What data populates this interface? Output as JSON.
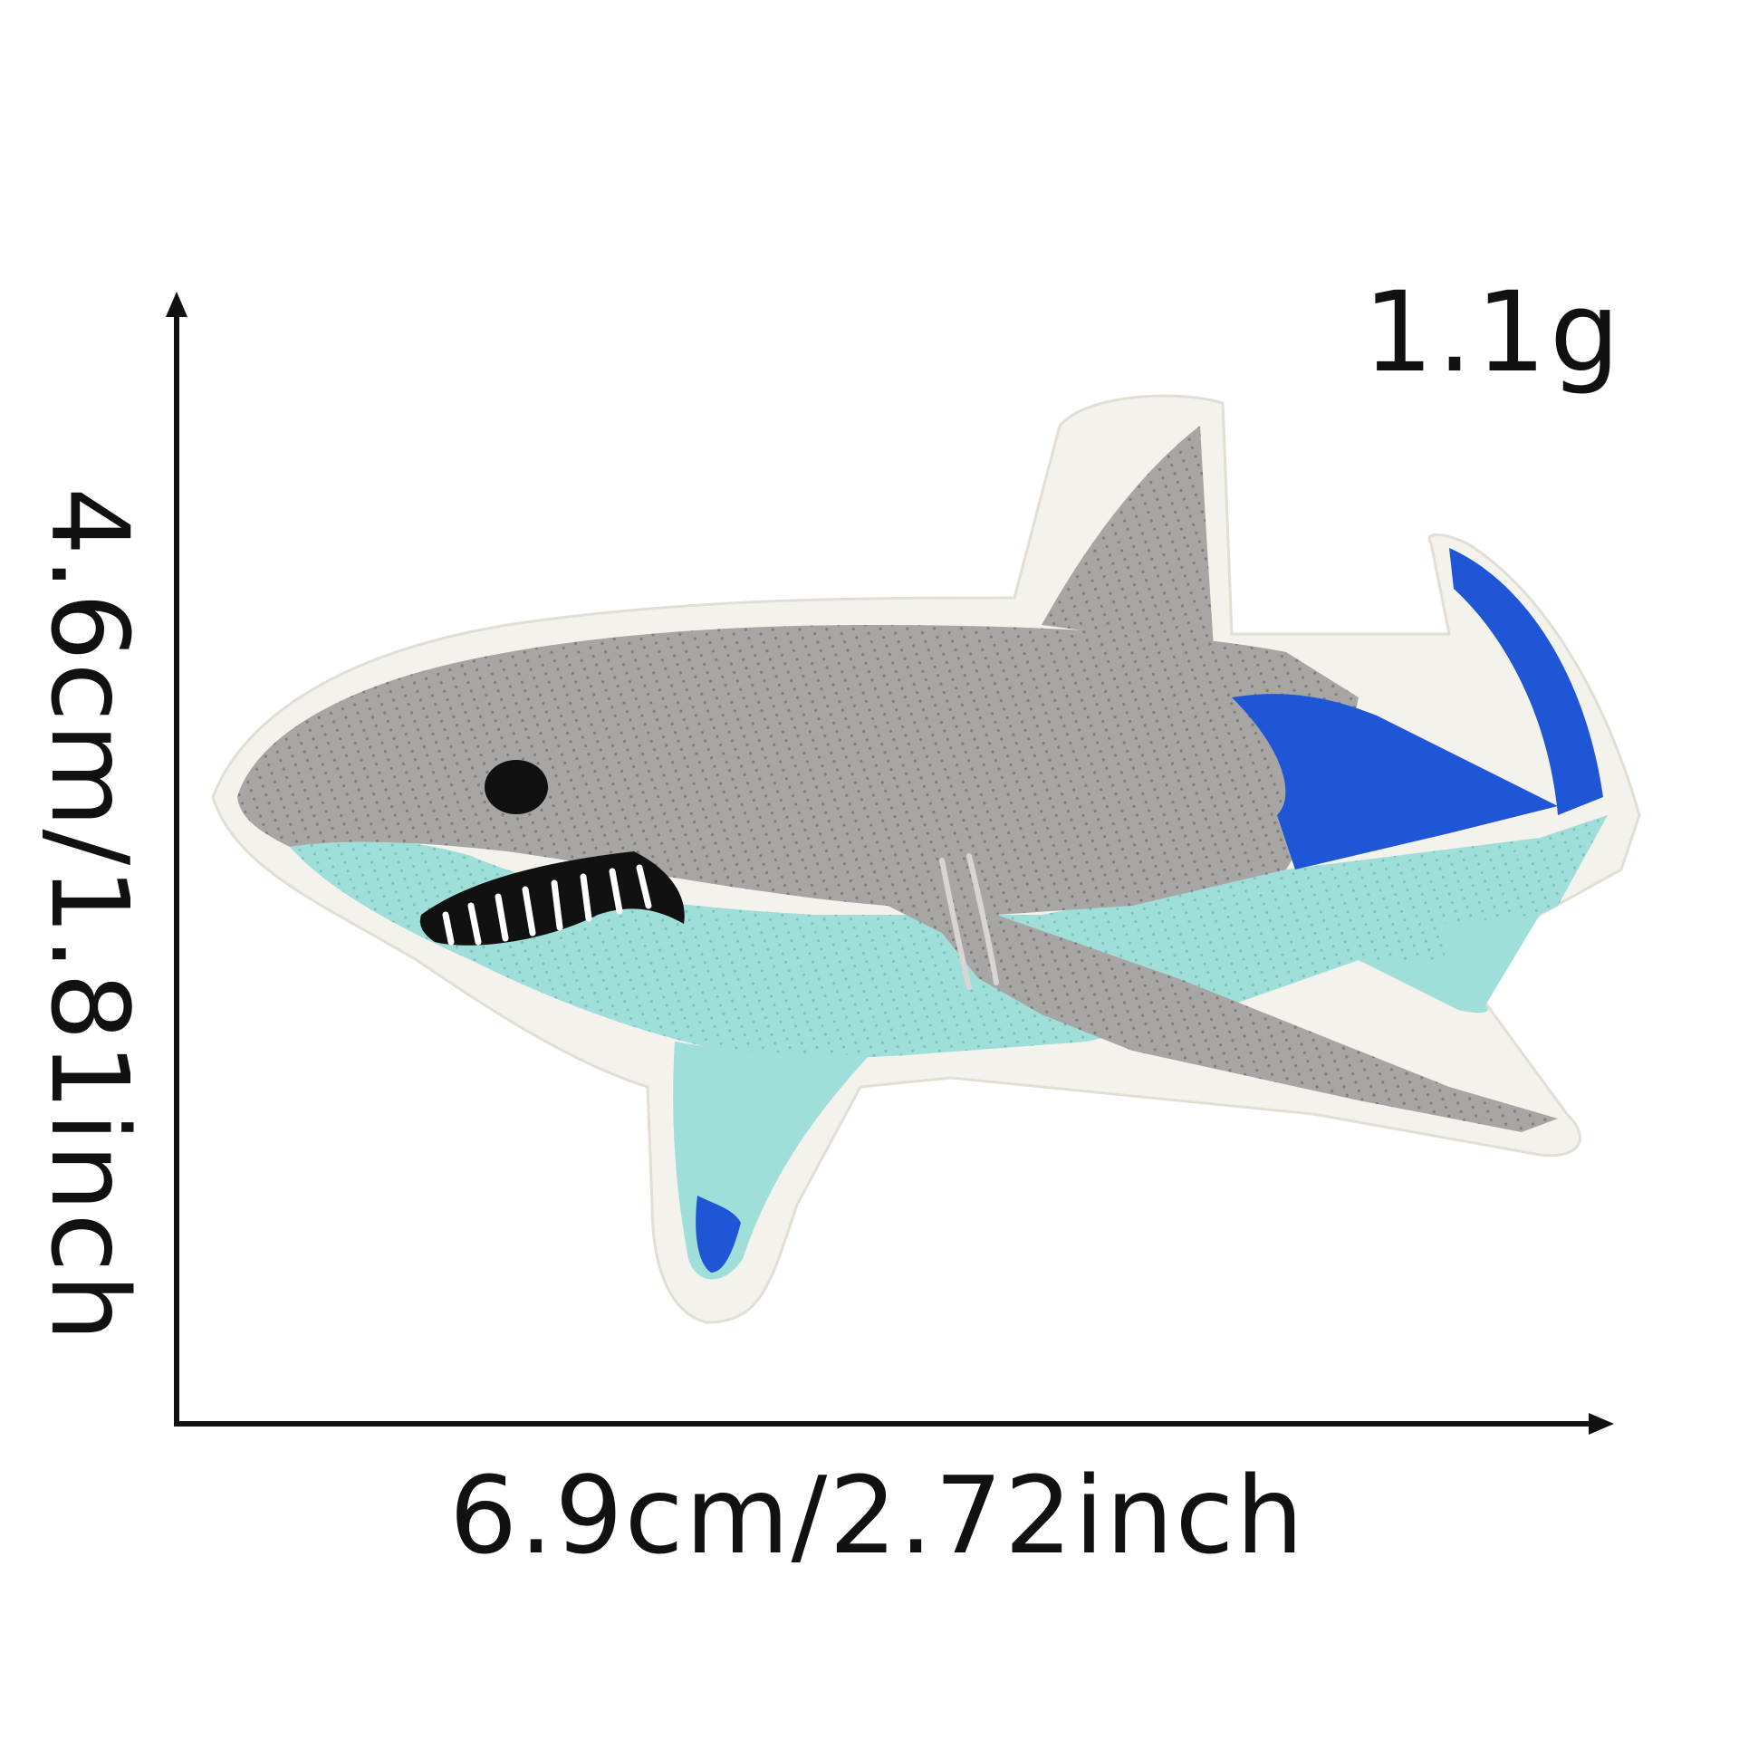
{
  "product": {
    "weight_label": "1.1g",
    "width_label": "6.9cm/2.72inch",
    "height_label": "4.6cm/1.81inch",
    "image_subject": "shark-embroidered-patch"
  },
  "colors": {
    "background": "#ffffff",
    "text": "#111111",
    "shark_gray": "#a8a6a4",
    "shark_belly": "#9fded9",
    "shark_blue": "#1f56d6",
    "patch_border": "#f4f2ec"
  }
}
